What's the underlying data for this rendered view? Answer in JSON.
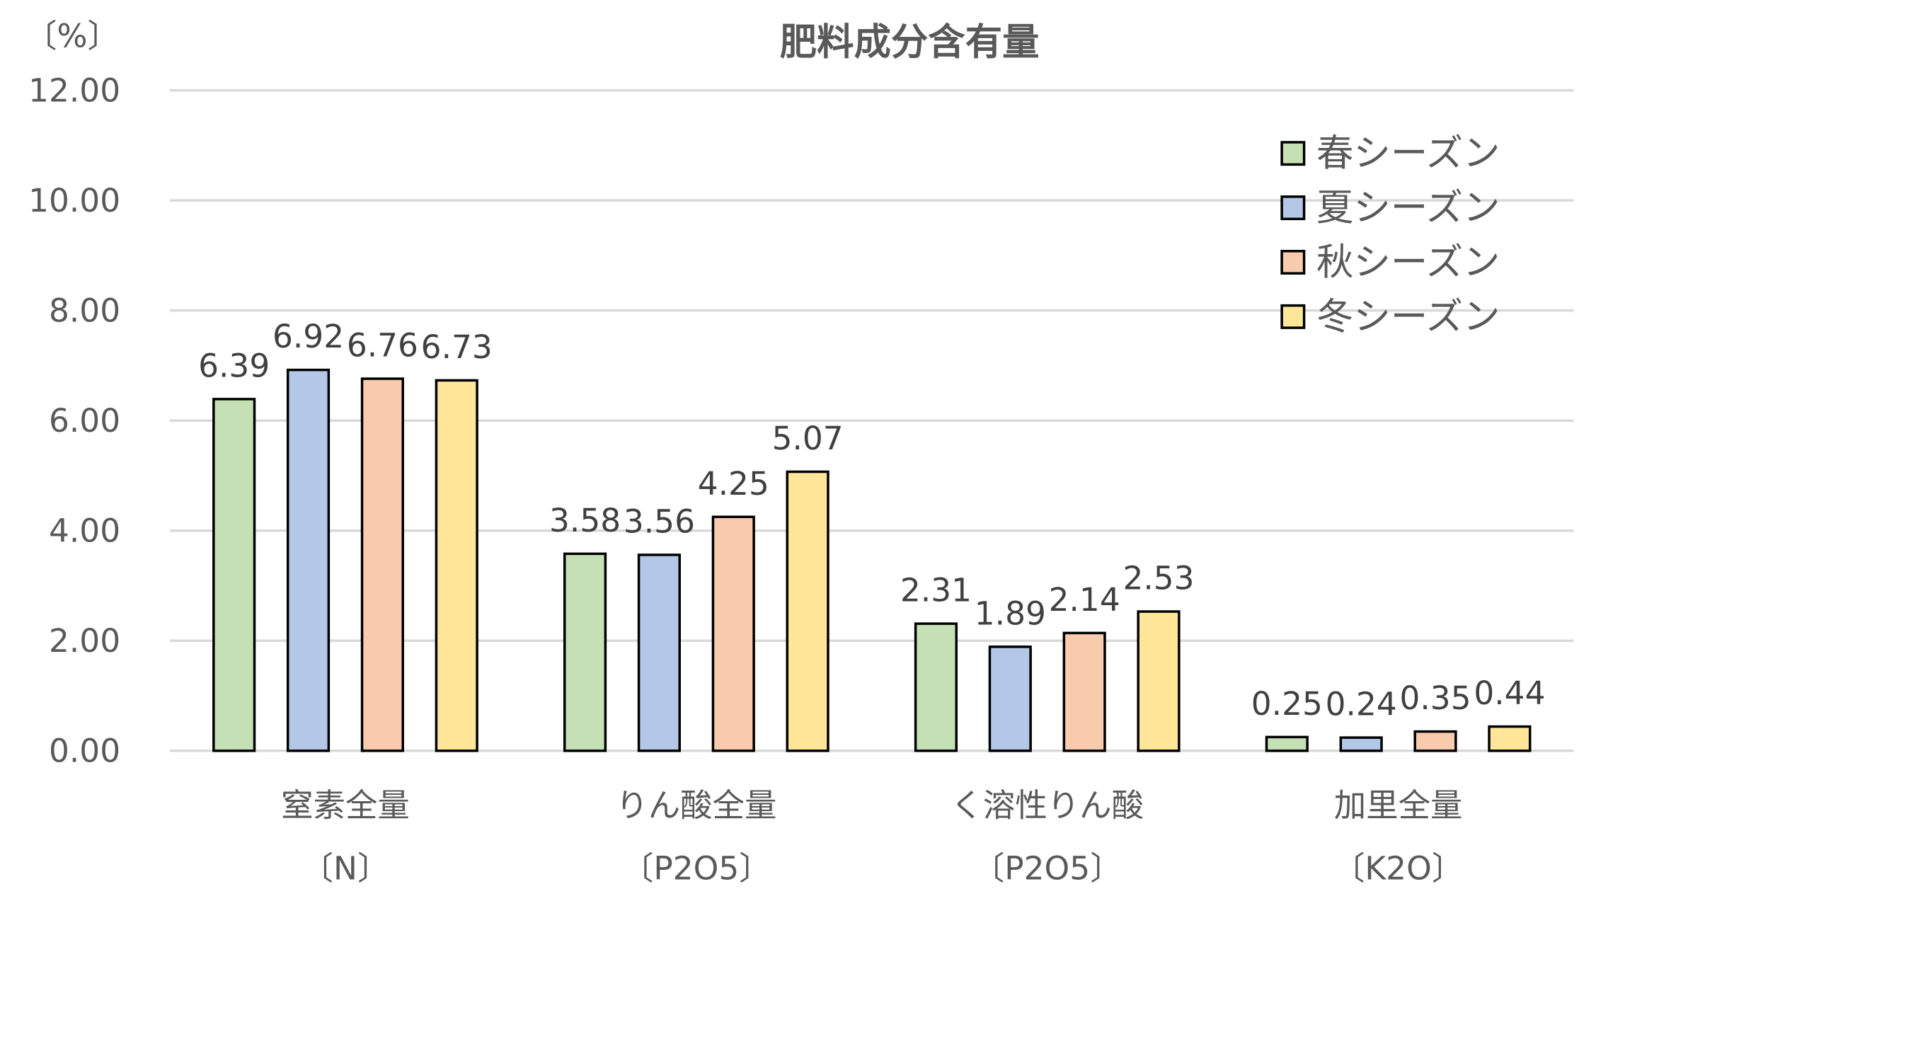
{
  "chart_data": {
    "type": "bar",
    "title": "肥料成分含有量",
    "ylabel": "〔%〕",
    "xlabel": "",
    "ylim": [
      0,
      12
    ],
    "yticks": [
      "0.00",
      "2.00",
      "4.00",
      "6.00",
      "8.00",
      "10.00",
      "12.00"
    ],
    "grid": true,
    "legend_position": "top-right",
    "categories": [
      {
        "line1": "窒素全量",
        "line2": "〔N〕"
      },
      {
        "line1": "りん酸全量",
        "line2": "〔P2O5〕"
      },
      {
        "line1": "く溶性りん酸",
        "line2": "〔P2O5〕"
      },
      {
        "line1": "加里全量",
        "line2": "〔K2O〕"
      }
    ],
    "series": [
      {
        "name": "春シーズン",
        "color": "#C5E0B4",
        "values": [
          6.39,
          3.58,
          2.31,
          0.25
        ]
      },
      {
        "name": "夏シーズン",
        "color": "#B4C7E7",
        "values": [
          6.92,
          3.56,
          1.89,
          0.24
        ]
      },
      {
        "name": "秋シーズン",
        "color": "#F8CBAD",
        "values": [
          6.76,
          4.25,
          2.14,
          0.35
        ]
      },
      {
        "name": "冬シーズン",
        "color": "#FFE699",
        "values": [
          6.73,
          5.07,
          2.53,
          0.44
        ]
      }
    ]
  }
}
